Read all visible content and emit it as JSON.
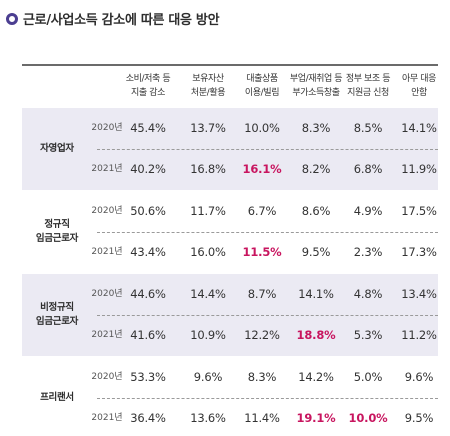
{
  "title": "근로/사업소득 감소에 따른 대응 방안",
  "colors": {
    "accent": "#4b3e91",
    "highlight": "#c8155f",
    "shade": "#ebeaf3"
  },
  "columns": [
    "소비/저축 등\n지출 감소",
    "보유자산\n처분/활용",
    "대출상품\n이용/빌림",
    "부업/재취업 등\n부가소득창출",
    "정부 보조 등\n지원금 신청",
    "아무 대응\n안함"
  ],
  "groups": [
    {
      "label": "자영업자",
      "rows": [
        {
          "year": "2020년",
          "values": [
            "45.4%",
            "13.7%",
            "10.0%",
            "8.3%",
            "8.5%",
            "14.1%"
          ],
          "highlight": []
        },
        {
          "year": "2021년",
          "values": [
            "40.2%",
            "16.8%",
            "16.1%",
            "8.2%",
            "6.8%",
            "11.9%"
          ],
          "highlight": [
            2
          ]
        }
      ]
    },
    {
      "label": "정규직\n임금근로자",
      "rows": [
        {
          "year": "2020년",
          "values": [
            "50.6%",
            "11.7%",
            "6.7%",
            "8.6%",
            "4.9%",
            "17.5%"
          ],
          "highlight": []
        },
        {
          "year": "2021년",
          "values": [
            "43.4%",
            "16.0%",
            "11.5%",
            "9.5%",
            "2.3%",
            "17.3%"
          ],
          "highlight": [
            2
          ]
        }
      ]
    },
    {
      "label": "비정규직\n임금근로자",
      "rows": [
        {
          "year": "2020년",
          "values": [
            "44.6%",
            "14.4%",
            "8.7%",
            "14.1%",
            "4.8%",
            "13.4%"
          ],
          "highlight": []
        },
        {
          "year": "2021년",
          "values": [
            "41.6%",
            "10.9%",
            "12.2%",
            "18.8%",
            "5.3%",
            "11.2%"
          ],
          "highlight": [
            3
          ]
        }
      ]
    },
    {
      "label": "프리랜서",
      "rows": [
        {
          "year": "2020년",
          "values": [
            "53.3%",
            "9.6%",
            "8.3%",
            "14.2%",
            "5.0%",
            "9.6%"
          ],
          "highlight": []
        },
        {
          "year": "2021년",
          "values": [
            "36.4%",
            "13.6%",
            "11.4%",
            "19.1%",
            "10.0%",
            "9.5%"
          ],
          "highlight": [
            3,
            4
          ]
        }
      ]
    }
  ]
}
